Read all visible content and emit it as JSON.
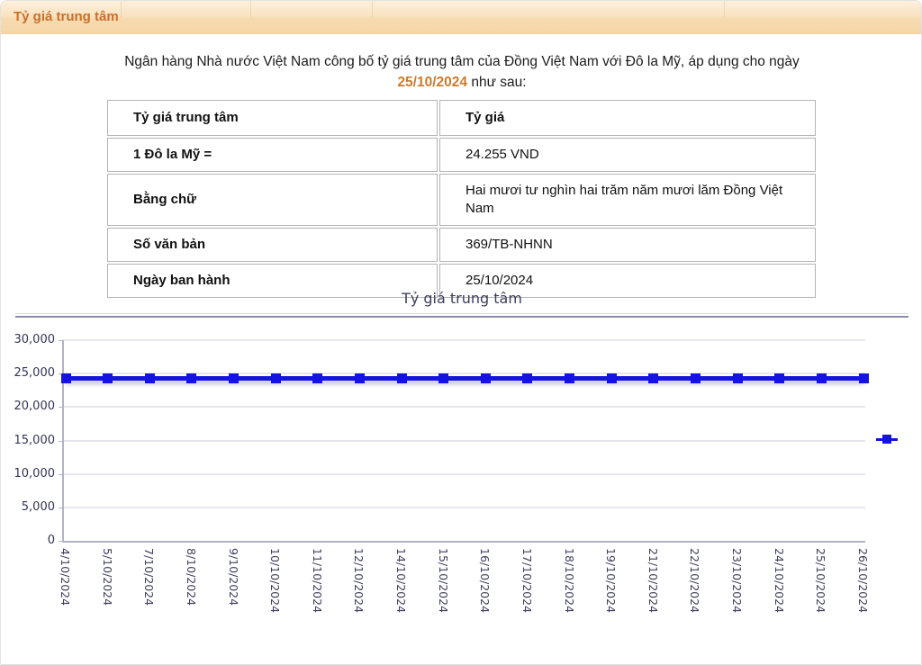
{
  "header": {
    "title": "Tỷ giá trung tâm"
  },
  "intro": {
    "text_before": "Ngân hàng Nhà nước Việt Nam công bố tỷ giá trung tâm của Đồng Việt Nam với Đô la Mỹ, áp dụng cho ngày ",
    "date": "25/10/2024",
    "text_after": " như sau:"
  },
  "table": {
    "rows": [
      {
        "label": "Tỷ giá trung tâm",
        "value": "Tỷ giá"
      },
      {
        "label": "1 Đô la Mỹ =",
        "value": "24.255 VND"
      },
      {
        "label": "Bằng chữ",
        "value": "Hai mươi tư nghìn hai trăm năm mươi lăm Đồng Việt Nam"
      },
      {
        "label": "Số văn bản",
        "value": "369/TB-NHNN"
      },
      {
        "label": "Ngày ban hành",
        "value": "25/10/2024"
      }
    ]
  },
  "chart_data": {
    "type": "line",
    "title": "Tỷ giá trung tâm",
    "x": [
      "4/10/2024",
      "5/10/2024",
      "7/10/2024",
      "8/10/2024",
      "9/10/2024",
      "10/10/2024",
      "11/10/2024",
      "12/10/2024",
      "14/10/2024",
      "15/10/2024",
      "16/10/2024",
      "17/10/2024",
      "18/10/2024",
      "19/10/2024",
      "21/10/2024",
      "22/10/2024",
      "23/10/2024",
      "24/10/2024",
      "25/10/2024",
      "26/10/2024"
    ],
    "series": [
      {
        "name": "Tỷ giá trung tâm",
        "values": [
          24255,
          24255,
          24255,
          24255,
          24255,
          24255,
          24255,
          24255,
          24255,
          24255,
          24255,
          24255,
          24255,
          24255,
          24255,
          24255,
          24255,
          24255,
          24255,
          24255
        ]
      }
    ],
    "ylim": [
      0,
      30000
    ],
    "ytick_values": [
      0,
      5000,
      10000,
      15000,
      20000,
      25000,
      30000
    ],
    "ytick_labels": [
      "0",
      "5,000",
      "10,000",
      "15,000",
      "20,000",
      "25,000",
      "30,000"
    ],
    "xlabel": "",
    "ylabel": "",
    "grid": true,
    "legend_position": "right-center",
    "line_color": "#1414dd",
    "marker": "square"
  },
  "colors": {
    "header_text": "#c8702b",
    "date_highlight": "#cb7a2e",
    "series_blue": "#1414dd",
    "chart_text": "#343457",
    "header_bg": "#f7dbb1"
  }
}
